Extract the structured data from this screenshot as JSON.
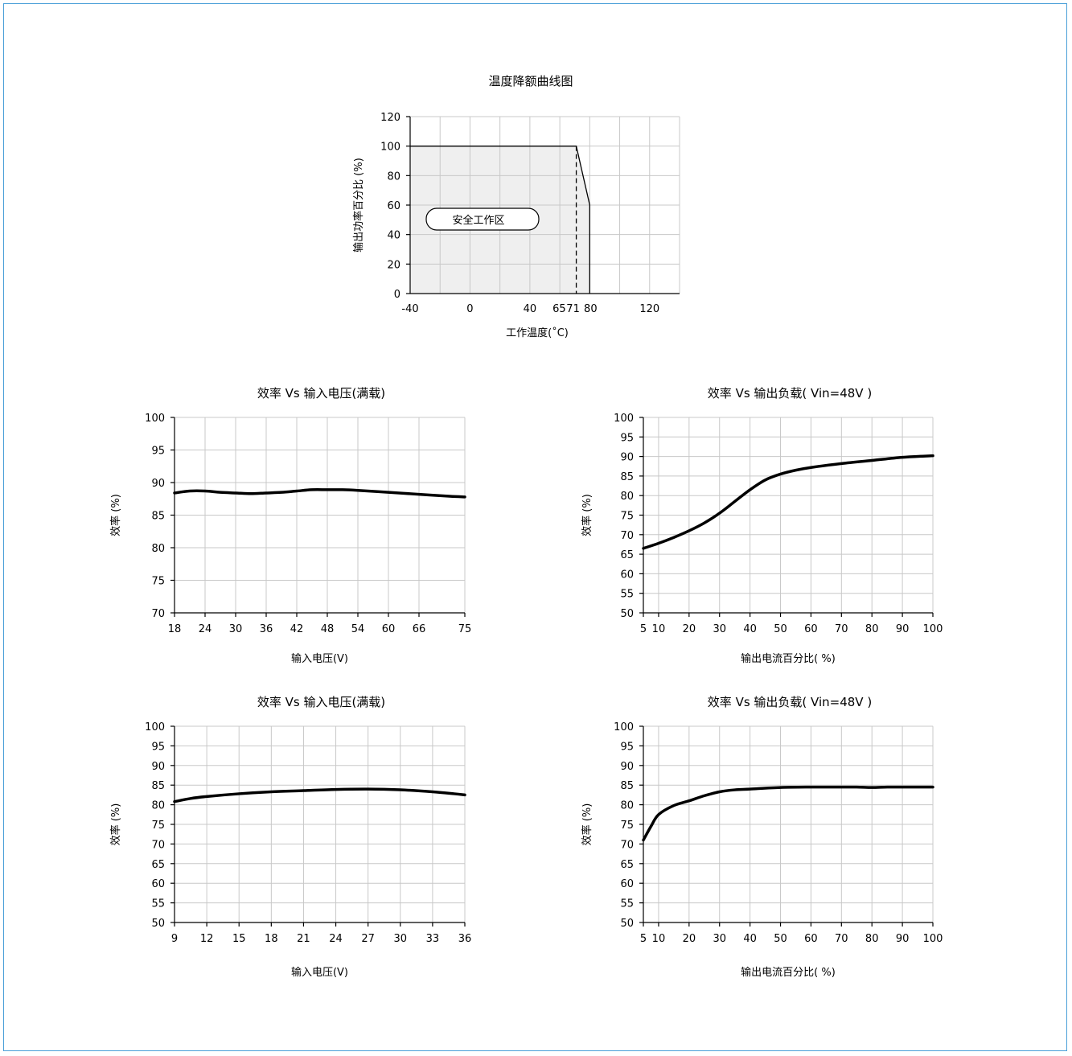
{
  "chart_data": [
    {
      "id": "derating",
      "type": "area",
      "title": "温度降额曲线图",
      "xlabel": "工作温度(˚C)",
      "ylabel": "输出功率百分比 (%)",
      "xlim": [
        -40,
        140
      ],
      "ylim": [
        0,
        120
      ],
      "x_ticks": [
        -40,
        0,
        40,
        65,
        71,
        80,
        120
      ],
      "x_tick_labels": [
        "-40",
        "0",
        "40",
        "65",
        "71",
        "80",
        "120"
      ],
      "y_ticks": [
        0,
        20,
        40,
        60,
        80,
        100,
        120
      ],
      "x_grid_step": 20,
      "grid": true,
      "series": [
        {
          "x": [
            -40,
            71,
            80,
            80
          ],
          "y": [
            100,
            100,
            60,
            0
          ]
        }
      ],
      "annotations": [
        {
          "text": "安全工作区"
        }
      ]
    },
    {
      "id": "eff-vin-1",
      "type": "line",
      "title": "效率 Vs 输入电压(满载)",
      "xlabel": "输入电压(V)",
      "ylabel": "效率 (%)",
      "xlim": [
        18,
        75
      ],
      "ylim": [
        70,
        100
      ],
      "x_ticks": [
        18,
        24,
        30,
        36,
        42,
        48,
        54,
        60,
        66,
        75
      ],
      "y_ticks": [
        70,
        75,
        80,
        85,
        90,
        95,
        100
      ],
      "grid": true,
      "series": [
        {
          "x": [
            18,
            21,
            24,
            27,
            30,
            33,
            36,
            39,
            42,
            45,
            48,
            51,
            54,
            60,
            66,
            72,
            75
          ],
          "y": [
            88.4,
            88.7,
            88.7,
            88.5,
            88.4,
            88.3,
            88.4,
            88.5,
            88.7,
            88.9,
            88.9,
            88.9,
            88.8,
            88.5,
            88.2,
            87.9,
            87.8
          ]
        }
      ]
    },
    {
      "id": "eff-load-1",
      "type": "line",
      "title": "效率 Vs 输出负载( Vin=48V )",
      "xlabel": "输出电流百分比( %)",
      "ylabel": "效率 (%)",
      "xlim": [
        5,
        100
      ],
      "ylim": [
        50,
        100
      ],
      "x_ticks": [
        5,
        10,
        20,
        30,
        40,
        50,
        60,
        70,
        80,
        90,
        100
      ],
      "y_ticks": [
        50,
        55,
        60,
        65,
        70,
        75,
        80,
        85,
        90,
        95,
        100
      ],
      "grid": true,
      "series": [
        {
          "x": [
            5,
            10,
            15,
            20,
            25,
            30,
            35,
            40,
            45,
            50,
            55,
            60,
            70,
            80,
            90,
            100
          ],
          "y": [
            66.5,
            67.8,
            69.3,
            71,
            73,
            75.5,
            78.5,
            81.5,
            84,
            85.5,
            86.5,
            87.2,
            88.2,
            89,
            89.8,
            90.2
          ]
        }
      ]
    },
    {
      "id": "eff-vin-2",
      "type": "line",
      "title": "效率 Vs 输入电压(满载)",
      "xlabel": "输入电压(V)",
      "ylabel": "效率 (%)",
      "xlim": [
        9,
        36
      ],
      "ylim": [
        50,
        100
      ],
      "x_ticks": [
        9,
        12,
        15,
        18,
        21,
        24,
        27,
        30,
        33,
        36
      ],
      "y_ticks": [
        50,
        55,
        60,
        65,
        70,
        75,
        80,
        85,
        90,
        95,
        100
      ],
      "grid": true,
      "series": [
        {
          "x": [
            9,
            10.5,
            12,
            15,
            18,
            21,
            24,
            27,
            30,
            33,
            35,
            36
          ],
          "y": [
            80.8,
            81.6,
            82.1,
            82.8,
            83.3,
            83.6,
            83.9,
            84.0,
            83.8,
            83.3,
            82.8,
            82.5
          ]
        }
      ]
    },
    {
      "id": "eff-load-2",
      "type": "line",
      "title": "效率 Vs 输出负载( Vin=48V )",
      "xlabel": "输出电流百分比( %)",
      "ylabel": "效率 (%)",
      "xlim": [
        5,
        100
      ],
      "ylim": [
        50,
        100
      ],
      "x_ticks": [
        5,
        10,
        20,
        30,
        40,
        50,
        60,
        70,
        80,
        90,
        100
      ],
      "y_ticks": [
        50,
        55,
        60,
        65,
        70,
        75,
        80,
        85,
        90,
        95,
        100
      ],
      "grid": true,
      "series": [
        {
          "x": [
            5,
            7.5,
            10,
            15,
            20,
            25,
            30,
            35,
            40,
            50,
            60,
            70,
            75,
            80,
            85,
            90,
            100
          ],
          "y": [
            71,
            74.5,
            77.5,
            79.8,
            81,
            82.3,
            83.3,
            83.8,
            84.0,
            84.4,
            84.5,
            84.5,
            84.5,
            84.4,
            84.5,
            84.5,
            84.5
          ]
        }
      ]
    }
  ]
}
